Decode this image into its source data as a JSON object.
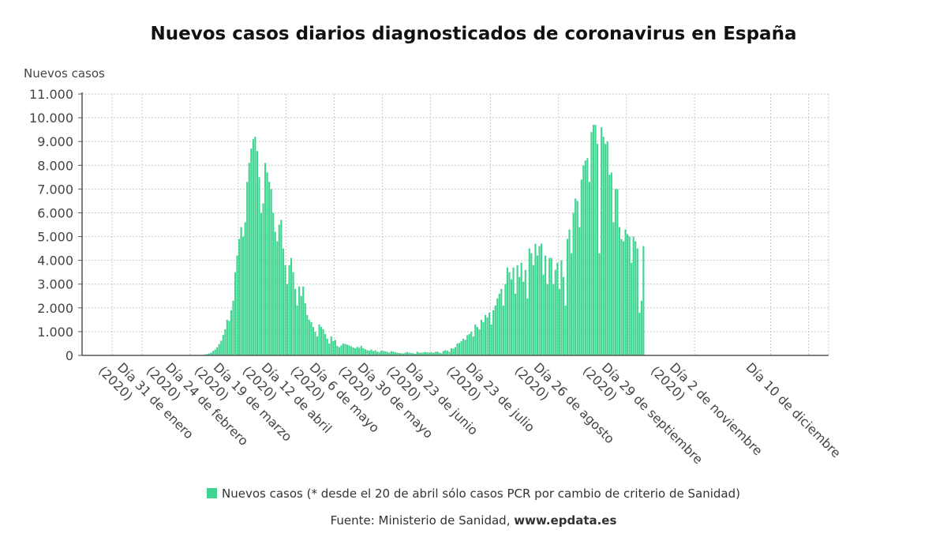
{
  "colors": {
    "bar": "#3fd490",
    "grid": "#c8c8c8",
    "axis": "#555555"
  },
  "chart_data": {
    "type": "bar",
    "title": "Nuevos casos diarios diagnosticados de coronavirus en España",
    "ylabel": "Nuevos casos",
    "xlabel": "",
    "ylim": [
      0,
      11000
    ],
    "yticks": [
      0,
      1000,
      2000,
      3000,
      4000,
      5000,
      6000,
      7000,
      8000,
      9000,
      10000,
      11000
    ],
    "ytick_labels": [
      "0",
      "1.000",
      "2.000",
      "3.000",
      "4.000",
      "5.000",
      "6.000",
      "7.000",
      "8.000",
      "9.000",
      "10.000",
      "11.000"
    ],
    "xlim": [
      "2020-01-01",
      "2021-01-08"
    ],
    "xticks": [
      {
        "date": "2020-01-31",
        "label": [
          "Día 31 de enero",
          "(2020)"
        ]
      },
      {
        "date": "2020-02-24",
        "label": [
          "Día 24 de febrero",
          "(2020)"
        ]
      },
      {
        "date": "2020-03-19",
        "label": [
          "Día 19 de marzo",
          "(2020)"
        ]
      },
      {
        "date": "2020-04-12",
        "label": [
          "Día 12 de abril",
          "(2020)"
        ]
      },
      {
        "date": "2020-05-06",
        "label": [
          "Día 6 de mayo",
          "(2020)"
        ]
      },
      {
        "date": "2020-05-30",
        "label": [
          "Día 30 de mayo",
          "(2020)"
        ]
      },
      {
        "date": "2020-06-23",
        "label": [
          "Día 23 de junio",
          "(2020)"
        ]
      },
      {
        "date": "2020-07-23",
        "label": [
          "Día 23 de julio",
          "(2020)"
        ]
      },
      {
        "date": "2020-08-26",
        "label": [
          "Día 26 de agosto",
          "(2020)"
        ]
      },
      {
        "date": "2020-09-29",
        "label": [
          "Día 29 de septiembre",
          "(2020)"
        ]
      },
      {
        "date": "2020-11-02",
        "label": [
          "Día 2 de noviembre",
          "(2020)"
        ]
      },
      {
        "date": "2020-12-10",
        "label": [
          "Día 10 de diciembre",
          ""
        ]
      }
    ],
    "extra_gridlines": [
      "2020-01-01",
      "2020-01-16",
      "2020-12-29"
    ],
    "grid": true,
    "legend_position": "bottom",
    "series": [
      {
        "name": "Nuevos casos (* desde el 20 de abril sólo casos PCR por cambio de criterio de Sanidad)",
        "start_date": "2020-02-25",
        "values": [
          3,
          5,
          9,
          17,
          15,
          18,
          40,
          60,
          82,
          115,
          190,
          250,
          340,
          480,
          620,
          860,
          1100,
          1500,
          1450,
          1900,
          2300,
          3500,
          4200,
          4900,
          5400,
          5000,
          5600,
          7300,
          8100,
          8700,
          9100,
          9200,
          8600,
          7500,
          6000,
          6400,
          8100,
          7700,
          7300,
          7000,
          6000,
          5200,
          4800,
          5500,
          5700,
          4500,
          3800,
          3000,
          3800,
          4100,
          3500,
          2800,
          2100,
          2900,
          2500,
          2900,
          2200,
          1700,
          1500,
          1400,
          1200,
          1000,
          800,
          1300,
          1200,
          1100,
          900,
          700,
          500,
          800,
          600,
          650,
          400,
          350,
          420,
          500,
          480,
          450,
          420,
          380,
          330,
          300,
          360,
          320,
          400,
          300,
          260,
          220,
          200,
          250,
          180,
          220,
          160,
          140,
          200,
          190,
          170,
          150,
          120,
          180,
          160,
          130,
          110,
          100,
          90,
          80,
          120,
          140,
          110,
          100,
          90,
          70,
          150,
          120,
          110,
          130,
          140,
          130,
          120,
          140,
          110,
          150,
          160,
          120,
          90,
          180,
          220,
          200,
          150,
          300,
          280,
          350,
          500,
          520,
          600,
          700,
          650,
          850,
          900,
          1000,
          800,
          1300,
          1200,
          1100,
          1500,
          1400,
          1700,
          1600,
          1800,
          1300,
          1900,
          2100,
          2400,
          2600,
          2800,
          2100,
          3000,
          3700,
          3500,
          3200,
          3700,
          2600,
          3800,
          3300,
          3900,
          3100,
          3600,
          2400,
          4500,
          4300,
          3800,
          4700,
          4200,
          4600,
          4700,
          3400,
          4200,
          3000,
          4100,
          4100,
          3000,
          3600,
          3900,
          2800,
          4000,
          3300,
          2100,
          4900,
          5300,
          4300,
          6000,
          6600,
          6500,
          5400,
          7400,
          8000,
          8200,
          8300,
          7300,
          9400,
          9700,
          9700,
          8900,
          4300,
          9600,
          9200,
          8900,
          9000,
          7600,
          7700,
          5600,
          7000,
          7000,
          5400,
          4900,
          4800,
          5300,
          5100,
          5000,
          3900,
          5000,
          4800,
          4500,
          1800,
          2300,
          4600
        ]
      }
    ]
  },
  "legend": {
    "label": "Nuevos casos (* desde el 20 de abril sólo casos PCR por cambio de criterio de Sanidad)"
  },
  "source": {
    "label": "Fuente: Ministerio de Sanidad, ",
    "site": "www.epdata.es"
  }
}
